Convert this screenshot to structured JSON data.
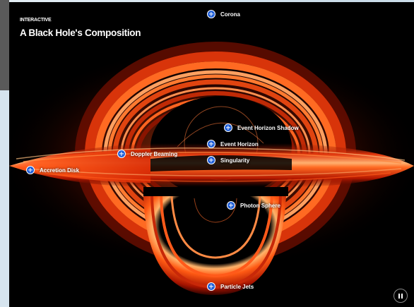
{
  "header": {
    "kicker": "INTERACTIVE",
    "title": "A Black Hole's Composition"
  },
  "hotspots": [
    {
      "id": "corona",
      "label": "Corona"
    },
    {
      "id": "event-horizon-shadow",
      "label": "Event Horizon Shadow"
    },
    {
      "id": "doppler-beaming",
      "label": "Doppler Beaming"
    },
    {
      "id": "event-horizon",
      "label": "Event Horizon"
    },
    {
      "id": "singularity",
      "label": "Singularity"
    },
    {
      "id": "accretion-disk",
      "label": "Accretion Disk"
    },
    {
      "id": "photon-sphere",
      "label": "Photon Sphere"
    },
    {
      "id": "particle-jets",
      "label": "Particle Jets"
    }
  ],
  "controls": {
    "pause_icon": "pause-icon"
  },
  "colors": {
    "background": "#000000",
    "hotspot_fill": "#1f5fd8",
    "disk_hot": "#ffb347",
    "disk_mid": "#ff4a12",
    "disk_dark": "#8a1200"
  }
}
